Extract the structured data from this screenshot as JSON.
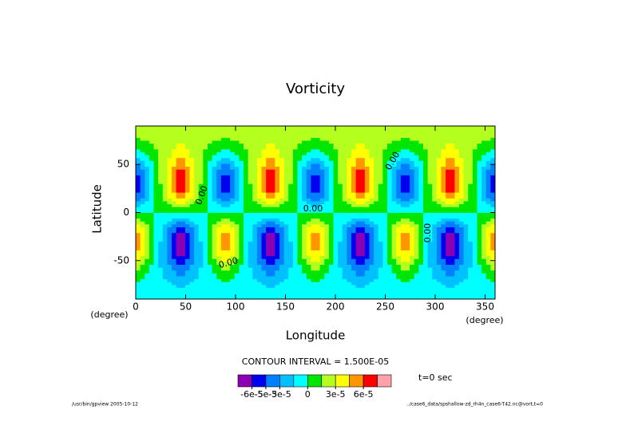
{
  "chart_data": {
    "type": "contourf",
    "title": "Vorticity",
    "x_label": "Longitude",
    "y_label": "Latitude",
    "x_unit": "(degree)",
    "y_unit": "(degree)",
    "xlim": [
      0,
      360
    ],
    "ylim": [
      -90,
      90
    ],
    "xticks": [
      0,
      50,
      100,
      150,
      200,
      250,
      300,
      350
    ],
    "yticks": [
      -50,
      0,
      50
    ],
    "x": [
      0,
      22.5,
      45,
      67.5,
      90,
      112.5,
      135,
      157.5,
      180,
      202.5,
      225,
      247.5,
      270,
      292.5,
      315,
      337.5,
      360
    ],
    "y": [
      -90,
      -75,
      -60,
      -45,
      -30,
      -15,
      0,
      15,
      30,
      45,
      60,
      75,
      90
    ],
    "z": [
      [
        -1e-05,
        -1e-05,
        -1e-05,
        -1e-05,
        -1e-05,
        -1e-05,
        -1e-05,
        -1e-05,
        -1e-05,
        -1e-05,
        -1e-05,
        -1e-05,
        -1e-05,
        -1e-05,
        -1e-05,
        -1e-05,
        -1e-05
      ],
      [
        -3e-06,
        -1e-05,
        -1.7e-05,
        -1e-05,
        -3e-06,
        -1e-05,
        -1.7e-05,
        -1e-05,
        -3e-06,
        -1e-05,
        -1.7e-05,
        -1e-05,
        -3e-06,
        -1e-05,
        -1.7e-05,
        -1e-05,
        -3e-06
      ],
      [
        1.6e-05,
        -1.2e-05,
        -4e-05,
        -1.2e-05,
        1.6e-05,
        -1.2e-05,
        -4e-05,
        -1.2e-05,
        1.6e-05,
        -1.2e-05,
        -4e-05,
        -1.2e-05,
        1.6e-05,
        -1.2e-05,
        -4e-05,
        -1.2e-05,
        1.6e-05
      ],
      [
        4.6e-05,
        -1e-05,
        -6.6e-05,
        -1e-05,
        4.6e-05,
        -1e-05,
        -6.6e-05,
        -1e-05,
        4.6e-05,
        -1e-05,
        -6.6e-05,
        -1e-05,
        4.6e-05,
        -1e-05,
        -6.6e-05,
        -1e-05,
        4.6e-05
      ],
      [
        6.2e-05,
        -8e-06,
        -7.8e-05,
        -8e-06,
        6.2e-05,
        -8e-06,
        -7.8e-05,
        -8e-06,
        6.2e-05,
        -8e-06,
        -7.8e-05,
        -8e-06,
        6.2e-05,
        -8e-06,
        -7.8e-05,
        -8e-06,
        6.2e-05
      ],
      [
        4.4e-05,
        -5e-06,
        -5.4e-05,
        -5e-06,
        4.4e-05,
        -5e-06,
        -5.4e-05,
        -5e-06,
        4.4e-05,
        -5e-06,
        -5.4e-05,
        -5e-06,
        4.4e-05,
        -5e-06,
        -5.4e-05,
        -5e-06,
        4.4e-05
      ],
      [
        0,
        0,
        0,
        0,
        0,
        0,
        0,
        0,
        0,
        0,
        0,
        0,
        0,
        0,
        0,
        0,
        0
      ],
      [
        -4.4e-05,
        5e-06,
        5.4e-05,
        5e-06,
        -4.4e-05,
        5e-06,
        5.4e-05,
        5e-06,
        -4.4e-05,
        5e-06,
        5.4e-05,
        5e-06,
        -4.4e-05,
        5e-06,
        5.4e-05,
        5e-06,
        -4.4e-05
      ],
      [
        -6.2e-05,
        8e-06,
        7.8e-05,
        8e-06,
        -6.2e-05,
        8e-06,
        7.8e-05,
        8e-06,
        -6.2e-05,
        8e-06,
        7.8e-05,
        8e-06,
        -6.2e-05,
        8e-06,
        7.8e-05,
        8e-06,
        -6.2e-05
      ],
      [
        -4.6e-05,
        1e-05,
        6.6e-05,
        1e-05,
        -4.6e-05,
        1e-05,
        6.6e-05,
        1e-05,
        -4.6e-05,
        1e-05,
        6.6e-05,
        1e-05,
        -4.6e-05,
        1e-05,
        6.6e-05,
        1e-05,
        -4.6e-05
      ],
      [
        -1.3e-05,
        1.5e-05,
        4.3e-05,
        1.5e-05,
        -1.3e-05,
        1.5e-05,
        4.3e-05,
        1.5e-05,
        -1.3e-05,
        1.5e-05,
        4.3e-05,
        1.5e-05,
        -1.3e-05,
        1.5e-05,
        4.3e-05,
        1.5e-05,
        -1.3e-05
      ],
      [
        1.3e-05,
        2e-05,
        2.7e-05,
        2e-05,
        1.3e-05,
        2e-05,
        2.7e-05,
        2e-05,
        1.3e-05,
        2e-05,
        2.7e-05,
        2e-05,
        1.3e-05,
        2e-05,
        2.7e-05,
        2e-05,
        1.3e-05
      ],
      [
        2e-05,
        2e-05,
        2e-05,
        2e-05,
        2e-05,
        2e-05,
        2e-05,
        2e-05,
        2e-05,
        2e-05,
        2e-05,
        2e-05,
        2e-05,
        2e-05,
        2e-05,
        2e-05,
        2e-05
      ]
    ],
    "levels": [
      -6e-05,
      -4.5e-05,
      -3e-05,
      -1.5e-05,
      0,
      1.5e-05,
      3e-05,
      4.5e-05,
      6e-05,
      7.5e-05
    ],
    "colors": [
      "#8c00b4",
      "#0000f0",
      "#0080ff",
      "#00c0ff",
      "#00ffff",
      "#00e600",
      "#b4ff1e",
      "#ffff00",
      "#ff9600",
      "#ff0000",
      "#ffa0aa"
    ],
    "colorbar_ticks": [
      {
        "value": -6e-05,
        "label": "-6e-5"
      },
      {
        "value": -4.5e-05,
        "label": "-5e-5"
      },
      {
        "value": -3e-05,
        "label": "-3e-5"
      },
      {
        "value": 0,
        "label": "0"
      },
      {
        "value": 3e-05,
        "label": "3e-5"
      },
      {
        "value": 6e-05,
        "label": "6e-5"
      }
    ],
    "contour_interval_text": "CONTOUR INTERVAL = 1.500E-05",
    "time_text": "t=0 sec",
    "contour_labels": [
      "0.00",
      "0.00",
      "0.00",
      "0.00",
      "0.00"
    ],
    "footer_left": "/usr/bin/gpview  2005-10-12",
    "footer_right": "../case6_data/spshallow-zd_rh4n_case6-T42.nc@vort,t=0"
  }
}
